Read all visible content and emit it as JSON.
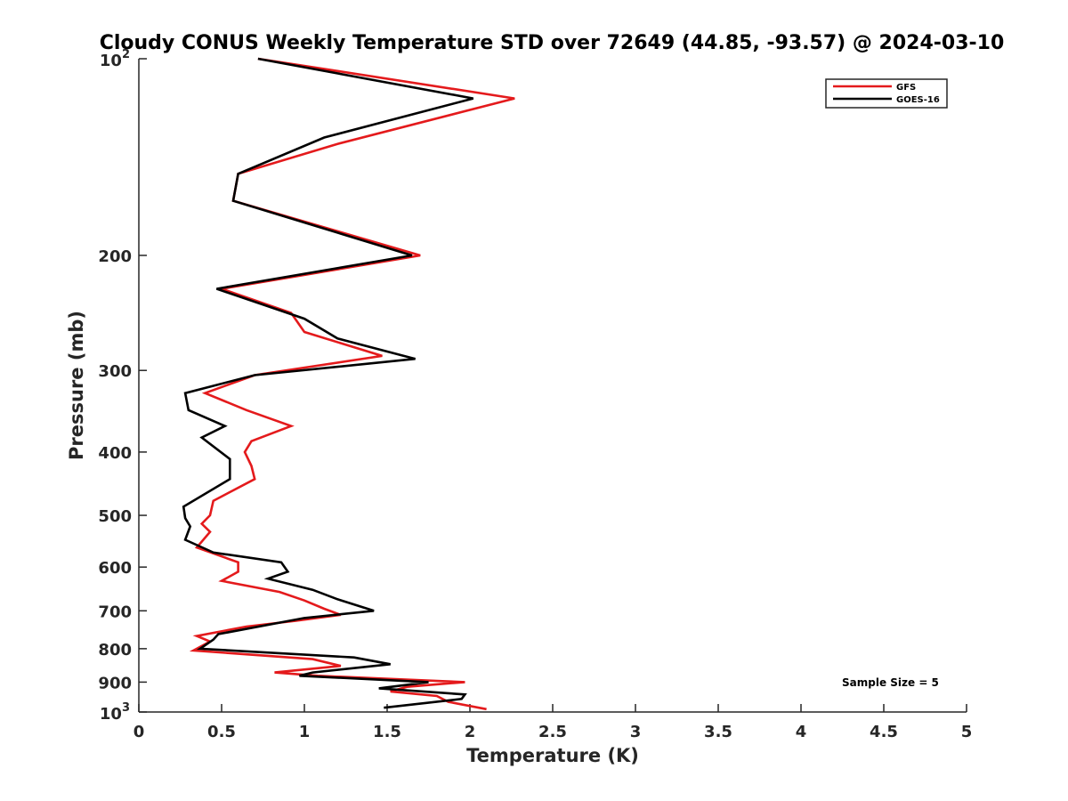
{
  "chart_data": {
    "type": "line",
    "title": "Cloudy CONUS Weekly Temperature STD over 72649 (44.85, -93.57) @ 2024-03-10",
    "xlabel": "Temperature (K)",
    "ylabel": "Pressure (mb)",
    "xlim": [
      0,
      5
    ],
    "ylim": [
      100,
      1000
    ],
    "yscale": "log",
    "y_reversed": true,
    "grid": false,
    "legend_position": "top-right",
    "x_ticks": [
      "0",
      "0.5",
      "1",
      "1.5",
      "2",
      "2.5",
      "3",
      "3.5",
      "4",
      "4.5",
      "5"
    ],
    "y_ticks": [
      {
        "value": 100,
        "base": "10",
        "exp": "2"
      },
      {
        "value": 200,
        "label": "200"
      },
      {
        "value": 300,
        "label": "300"
      },
      {
        "value": 400,
        "label": "400"
      },
      {
        "value": 500,
        "label": "500"
      },
      {
        "value": 600,
        "label": "600"
      },
      {
        "value": 700,
        "label": "700"
      },
      {
        "value": 800,
        "label": "800"
      },
      {
        "value": 900,
        "label": "900"
      },
      {
        "value": 1000,
        "base": "10",
        "exp": "3"
      }
    ],
    "annotation": "Sample Size = 5",
    "series": [
      {
        "name": "GFS",
        "color": "#e41a1c",
        "points": [
          [
            0.72,
            100
          ],
          [
            2.27,
            115
          ],
          [
            1.2,
            135
          ],
          [
            0.6,
            150
          ],
          [
            0.57,
            165
          ],
          [
            1.7,
            200
          ],
          [
            0.5,
            225
          ],
          [
            0.92,
            245
          ],
          [
            1.0,
            262
          ],
          [
            1.47,
            285
          ],
          [
            0.7,
            305
          ],
          [
            0.4,
            325
          ],
          [
            0.65,
            345
          ],
          [
            0.92,
            365
          ],
          [
            0.68,
            385
          ],
          [
            0.64,
            400
          ],
          [
            0.68,
            420
          ],
          [
            0.7,
            440
          ],
          [
            0.45,
            475
          ],
          [
            0.43,
            500
          ],
          [
            0.38,
            515
          ],
          [
            0.43,
            530
          ],
          [
            0.35,
            560
          ],
          [
            0.6,
            590
          ],
          [
            0.6,
            610
          ],
          [
            0.5,
            630
          ],
          [
            0.85,
            655
          ],
          [
            1.0,
            675
          ],
          [
            1.12,
            695
          ],
          [
            1.22,
            710
          ],
          [
            0.95,
            725
          ],
          [
            0.65,
            740
          ],
          [
            0.35,
            765
          ],
          [
            0.43,
            780
          ],
          [
            0.33,
            805
          ],
          [
            1.05,
            830
          ],
          [
            1.22,
            850
          ],
          [
            0.82,
            870
          ],
          [
            1.08,
            880
          ],
          [
            1.97,
            900
          ],
          [
            1.62,
            915
          ],
          [
            1.52,
            930
          ],
          [
            1.8,
            945
          ],
          [
            1.87,
            965
          ],
          [
            2.1,
            990
          ]
        ]
      },
      {
        "name": "GOES-16",
        "color": "#000000",
        "points": [
          [
            0.72,
            100
          ],
          [
            2.02,
            115
          ],
          [
            1.12,
            132
          ],
          [
            0.6,
            150
          ],
          [
            0.57,
            165
          ],
          [
            1.65,
            200
          ],
          [
            0.47,
            225
          ],
          [
            1.0,
            250
          ],
          [
            1.2,
            268
          ],
          [
            1.67,
            288
          ],
          [
            0.7,
            305
          ],
          [
            0.28,
            325
          ],
          [
            0.3,
            345
          ],
          [
            0.52,
            365
          ],
          [
            0.38,
            380
          ],
          [
            0.55,
            410
          ],
          [
            0.55,
            440
          ],
          [
            0.27,
            485
          ],
          [
            0.28,
            505
          ],
          [
            0.31,
            520
          ],
          [
            0.28,
            545
          ],
          [
            0.45,
            570
          ],
          [
            0.86,
            590
          ],
          [
            0.9,
            610
          ],
          [
            0.78,
            625
          ],
          [
            1.05,
            650
          ],
          [
            1.2,
            672
          ],
          [
            1.42,
            700
          ],
          [
            1.0,
            718
          ],
          [
            0.48,
            760
          ],
          [
            0.45,
            775
          ],
          [
            0.37,
            800
          ],
          [
            1.3,
            825
          ],
          [
            1.52,
            845
          ],
          [
            1.05,
            870
          ],
          [
            0.97,
            880
          ],
          [
            1.75,
            900
          ],
          [
            1.45,
            920
          ],
          [
            1.97,
            940
          ],
          [
            1.95,
            955
          ],
          [
            1.48,
            985
          ]
        ]
      }
    ]
  }
}
